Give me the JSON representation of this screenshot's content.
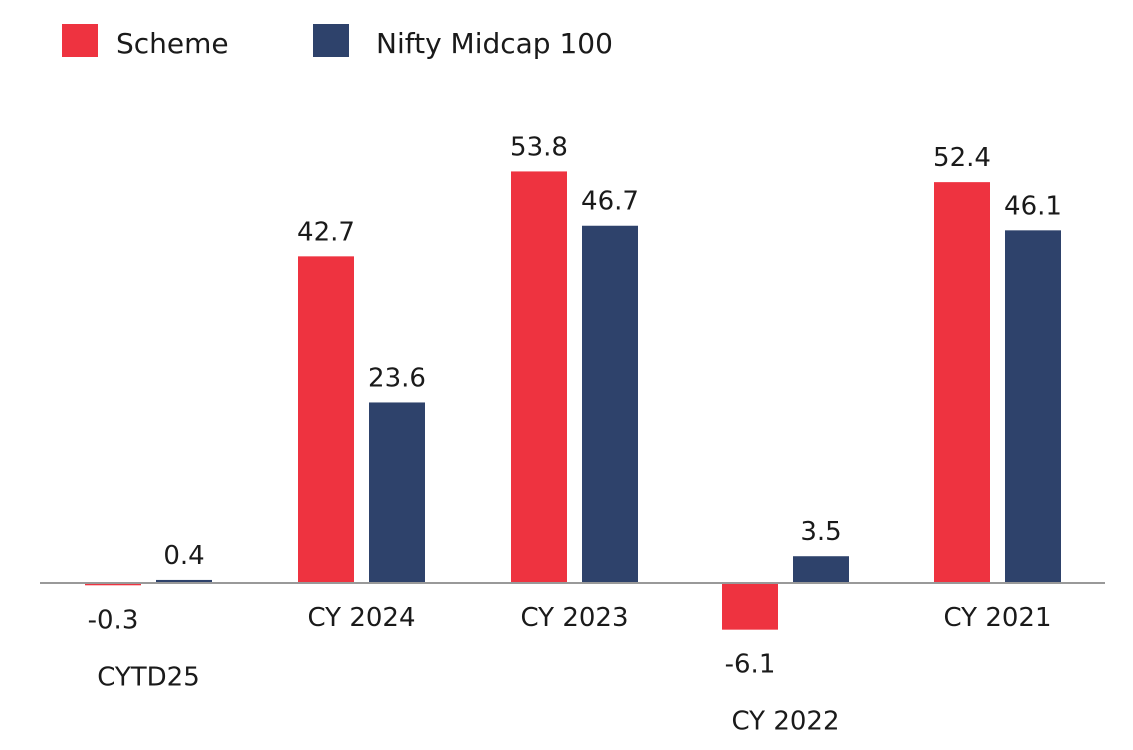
{
  "chart_data": {
    "type": "bar",
    "categories": [
      "CYTD25",
      "CY 2024",
      "CY 2023",
      "CY 2022",
      "CY 2021"
    ],
    "series": [
      {
        "name": "Scheme",
        "values": [
          -0.3,
          42.7,
          53.8,
          -6.1,
          52.4
        ]
      },
      {
        "name": "Nifty Midcap 100",
        "values": [
          0.4,
          23.6,
          46.7,
          3.5,
          46.1
        ]
      }
    ],
    "value_labels": [
      [
        "-0.3",
        "42.7",
        "53.8",
        "-6.1",
        "52.4"
      ],
      [
        "0.4",
        "23.6",
        "46.7",
        "3.5",
        "46.1"
      ]
    ],
    "legend_placement": "top-left",
    "grid": false,
    "colors": [
      "#EE3340",
      "#2E426B"
    ],
    "axis_color": "#999999",
    "ylim": [
      -10,
      60
    ]
  }
}
